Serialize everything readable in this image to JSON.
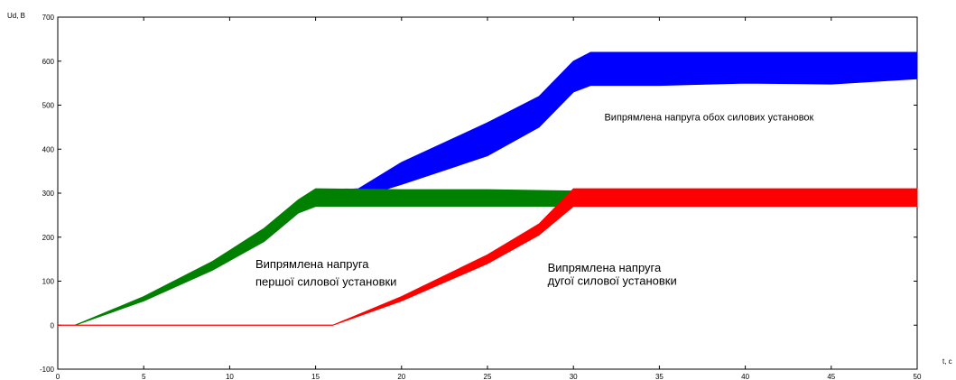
{
  "chart_data": {
    "type": "line",
    "title": "",
    "xlabel": "t, c",
    "ylabel": "Ud, B",
    "xlim": [
      0,
      50
    ],
    "ylim": [
      -100,
      700
    ],
    "xticks": [
      0,
      5,
      10,
      15,
      20,
      25,
      30,
      35,
      40,
      45,
      50
    ],
    "yticks": [
      -100,
      0,
      100,
      200,
      300,
      400,
      500,
      600,
      700
    ],
    "grid": false,
    "legend": "none",
    "series": [
      {
        "color": "#0000ff",
        "points": [
          [
            15,
            285
          ],
          [
            17.5,
            305
          ],
          [
            20,
            345
          ],
          [
            25,
            420
          ],
          [
            28,
            485
          ],
          [
            30,
            565
          ],
          [
            31,
            580
          ],
          [
            35,
            582
          ],
          [
            40,
            582
          ],
          [
            45,
            582
          ],
          [
            50,
            582
          ]
        ],
        "band_min": [
          [
            15,
            270
          ],
          [
            17.5,
            290
          ],
          [
            20,
            320
          ],
          [
            25,
            385
          ],
          [
            28,
            450
          ],
          [
            30,
            530
          ],
          [
            31,
            545
          ],
          [
            35,
            545
          ],
          [
            40,
            550
          ],
          [
            45,
            548
          ],
          [
            50,
            560
          ]
        ],
        "band_max": [
          [
            15,
            305
          ],
          [
            17.5,
            310
          ],
          [
            20,
            370
          ],
          [
            25,
            460
          ],
          [
            28,
            520
          ],
          [
            30,
            600
          ],
          [
            31,
            620
          ],
          [
            35,
            620
          ],
          [
            40,
            620
          ],
          [
            45,
            620
          ],
          [
            50,
            620
          ]
        ]
      },
      {
        "color": "#008000",
        "points": [
          [
            1,
            0
          ],
          [
            5,
            60
          ],
          [
            9,
            135
          ],
          [
            12,
            205
          ],
          [
            14,
            270
          ],
          [
            15,
            290
          ],
          [
            20,
            290
          ],
          [
            25,
            290
          ],
          [
            30,
            287
          ]
        ],
        "band_min": [
          [
            1,
            0
          ],
          [
            5,
            55
          ],
          [
            9,
            125
          ],
          [
            12,
            190
          ],
          [
            14,
            255
          ],
          [
            15,
            270
          ],
          [
            20,
            270
          ],
          [
            25,
            270
          ],
          [
            30,
            270
          ]
        ],
        "band_max": [
          [
            1,
            0
          ],
          [
            5,
            65
          ],
          [
            9,
            145
          ],
          [
            12,
            220
          ],
          [
            14,
            285
          ],
          [
            15,
            310
          ],
          [
            20,
            308
          ],
          [
            25,
            308
          ],
          [
            30,
            305
          ]
        ]
      },
      {
        "color": "#ff0000",
        "points": [
          [
            0,
            0
          ],
          [
            16,
            0
          ],
          [
            20,
            60
          ],
          [
            25,
            145
          ],
          [
            28,
            220
          ],
          [
            30,
            290
          ],
          [
            35,
            290
          ],
          [
            40,
            290
          ],
          [
            45,
            290
          ],
          [
            50,
            290
          ]
        ],
        "band_min": [
          [
            0,
            0
          ],
          [
            16,
            0
          ],
          [
            20,
            55
          ],
          [
            25,
            140
          ],
          [
            28,
            205
          ],
          [
            30,
            270
          ],
          [
            35,
            270
          ],
          [
            40,
            270
          ],
          [
            45,
            270
          ],
          [
            50,
            270
          ]
        ],
        "band_max": [
          [
            0,
            0
          ],
          [
            16,
            0
          ],
          [
            20,
            65
          ],
          [
            25,
            160
          ],
          [
            28,
            230
          ],
          [
            30,
            310
          ],
          [
            35,
            310
          ],
          [
            40,
            310
          ],
          [
            45,
            310
          ],
          [
            50,
            310
          ]
        ]
      }
    ],
    "annotations": [
      {
        "text": "Випрямлена напруга обох силових установок",
        "x": 31.8,
        "y": 465
      },
      {
        "text": "Випрямлена напруга",
        "x": 11.5,
        "y": 130
      },
      {
        "text": "першої силової установки",
        "x": 11.5,
        "y": 90
      },
      {
        "text": "Випрямлена напруга",
        "x": 28.5,
        "y": 122
      },
      {
        "text": "дугої силової установки",
        "x": 28.5,
        "y": 92
      }
    ]
  }
}
